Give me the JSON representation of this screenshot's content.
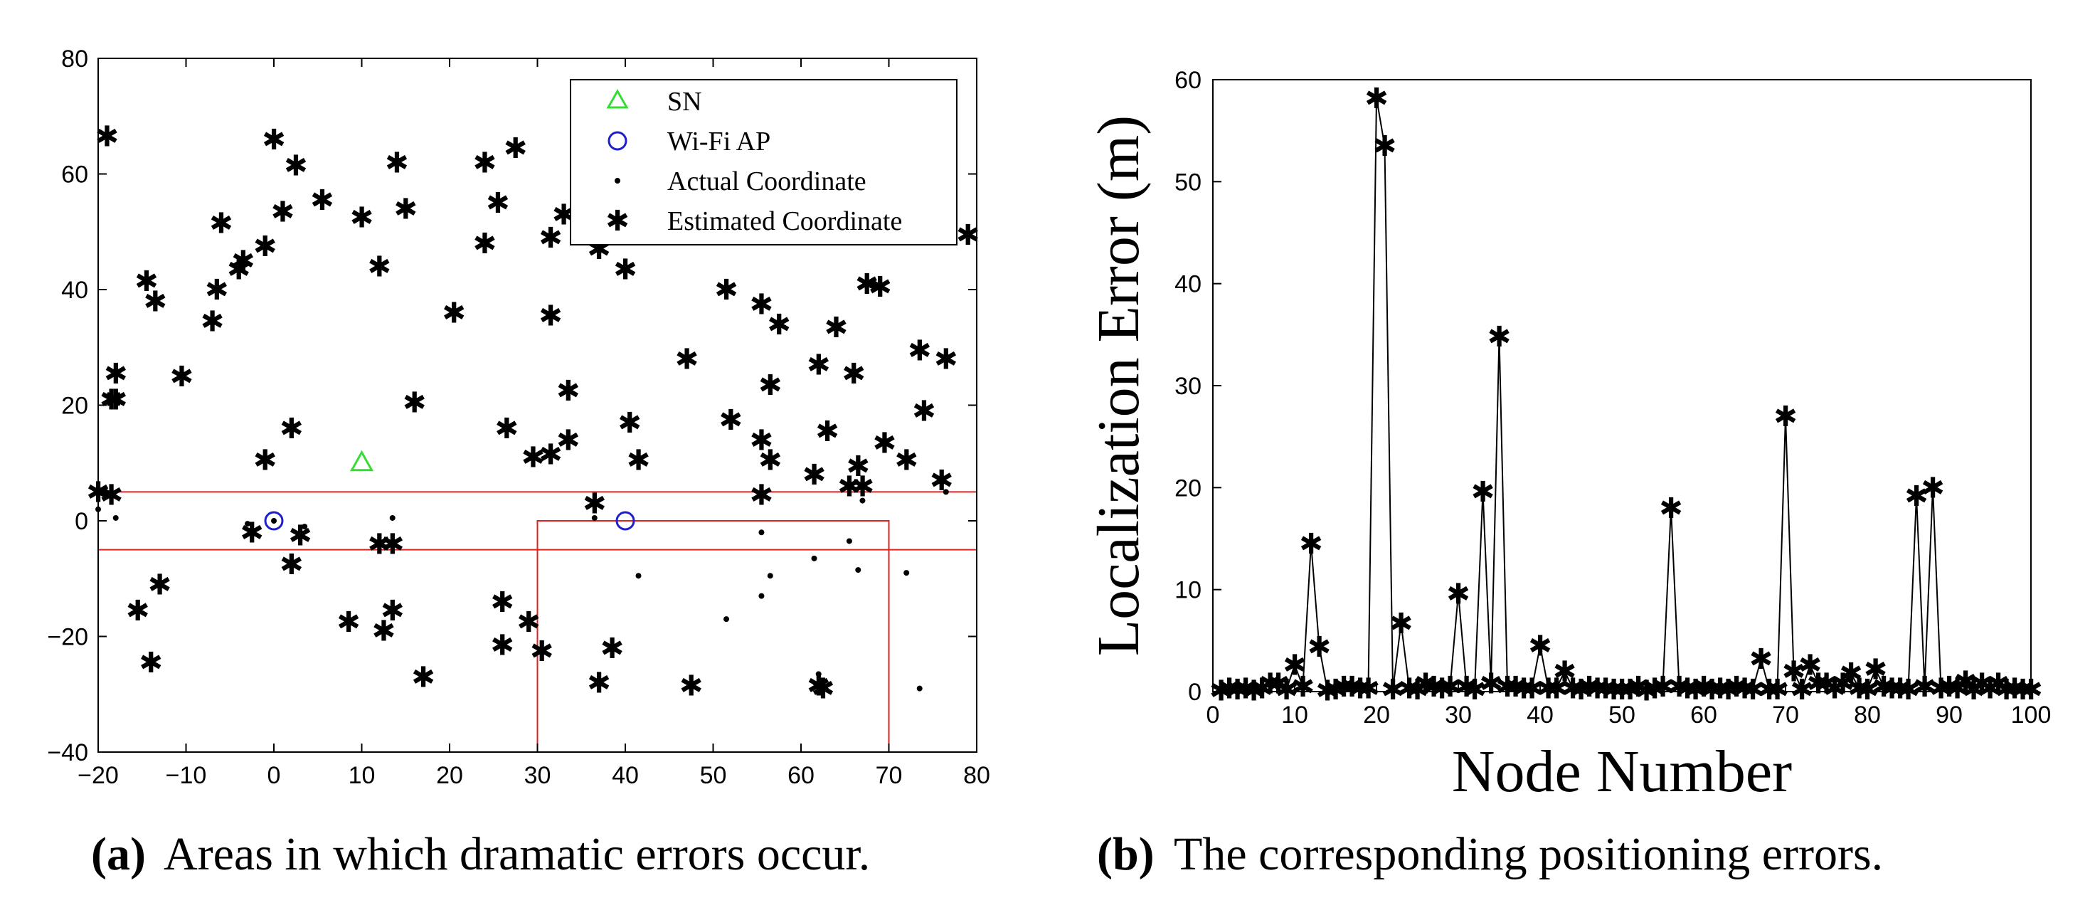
{
  "captions": {
    "a_label": "(a)",
    "a_text": "Areas in which dramatic errors occur.",
    "b_label": "(b)",
    "b_text": "The corresponding positioning errors."
  },
  "chart_data": [
    {
      "type": "scatter",
      "title": "",
      "xlabel": "",
      "ylabel": "",
      "xlim": [
        -20,
        80
      ],
      "ylim": [
        -40,
        80
      ],
      "xticks": [
        -20,
        -10,
        0,
        10,
        20,
        30,
        40,
        50,
        60,
        70,
        80
      ],
      "yticks": [
        -40,
        -20,
        0,
        20,
        40,
        60,
        80
      ],
      "legend_position": "top-right",
      "legend": [
        "SN",
        "Wi-Fi AP",
        "Actual Coordinate",
        "Estimated Coordinate"
      ],
      "colors": {
        "sn": "#33dd33",
        "ap": "#1f1fcc",
        "region": "#dd2222",
        "points": "#000000"
      },
      "sn": [
        [
          10,
          10
        ]
      ],
      "wifi_ap": [
        [
          0,
          0
        ],
        [
          40,
          0
        ]
      ],
      "regions": [
        {
          "x": [
            -20,
            80
          ],
          "y": [
            -5,
            5
          ]
        },
        {
          "x": [
            30,
            70
          ],
          "y": [
            -40,
            0
          ]
        }
      ],
      "actual": [
        [
          -20,
          2
        ],
        [
          -18,
          0.5
        ],
        [
          -3,
          -0.5
        ],
        [
          0,
          0
        ],
        [
          3.5,
          -1
        ],
        [
          12,
          -4
        ],
        [
          13.5,
          0.5
        ],
        [
          36.5,
          0.5
        ],
        [
          41.5,
          -9.5
        ],
        [
          51.5,
          -17
        ],
        [
          55.5,
          -2
        ],
        [
          55.5,
          -13
        ],
        [
          56.5,
          -9.5
        ],
        [
          61.5,
          -6.5
        ],
        [
          62,
          -26.5
        ],
        [
          65.5,
          -3.5
        ],
        [
          66.5,
          -8.5
        ],
        [
          67,
          3.5
        ],
        [
          72,
          -9
        ],
        [
          73.5,
          -29
        ],
        [
          76.5,
          5
        ]
      ],
      "estimated": [
        [
          -19,
          66.5
        ],
        [
          -20,
          5
        ],
        [
          -18.5,
          21
        ],
        [
          -18,
          25.5
        ],
        [
          -18,
          21
        ],
        [
          -18.5,
          4.5
        ],
        [
          -15.5,
          -15.5
        ],
        [
          -14.5,
          41.5
        ],
        [
          -14,
          -24.5
        ],
        [
          -13.5,
          38
        ],
        [
          -13,
          -11
        ],
        [
          -10.5,
          25
        ],
        [
          -7,
          34.5
        ],
        [
          -6.5,
          40
        ],
        [
          -6,
          51.5
        ],
        [
          -4,
          43.5
        ],
        [
          -3.5,
          45
        ],
        [
          -2.5,
          -2
        ],
        [
          -1,
          10.5
        ],
        [
          -1,
          47.5
        ],
        [
          0,
          66
        ],
        [
          1,
          53.5
        ],
        [
          2,
          16
        ],
        [
          2,
          -7.5
        ],
        [
          2.5,
          61.5
        ],
        [
          3,
          -2.5
        ],
        [
          5.5,
          55.5
        ],
        [
          8.5,
          -17.5
        ],
        [
          10,
          52.5
        ],
        [
          12,
          -4
        ],
        [
          12,
          44
        ],
        [
          12.5,
          -19
        ],
        [
          13.5,
          -4
        ],
        [
          13.5,
          -15.5
        ],
        [
          14,
          62
        ],
        [
          15,
          54
        ],
        [
          16,
          20.5
        ],
        [
          17,
          -27
        ],
        [
          20.5,
          36
        ],
        [
          24,
          62
        ],
        [
          24,
          48
        ],
        [
          25.5,
          55
        ],
        [
          26,
          -14
        ],
        [
          26,
          -21.5
        ],
        [
          26.5,
          16
        ],
        [
          27.5,
          64.5
        ],
        [
          29,
          -17.5
        ],
        [
          29.5,
          11
        ],
        [
          30.5,
          -22.5
        ],
        [
          31.5,
          11.5
        ],
        [
          31.5,
          35.5
        ],
        [
          31.5,
          49
        ],
        [
          33,
          53
        ],
        [
          33.5,
          22.5
        ],
        [
          33.5,
          14
        ],
        [
          36.5,
          3
        ],
        [
          37,
          -28
        ],
        [
          37,
          47
        ],
        [
          38.5,
          -22
        ],
        [
          40,
          43.5
        ],
        [
          40.5,
          17
        ],
        [
          41.5,
          10.5
        ],
        [
          47,
          28
        ],
        [
          47.5,
          -28.5
        ],
        [
          51.5,
          40
        ],
        [
          52,
          17.5
        ],
        [
          55.5,
          37.5
        ],
        [
          55.5,
          14
        ],
        [
          55.5,
          4.5
        ],
        [
          56.5,
          23.5
        ],
        [
          56.5,
          10.5
        ],
        [
          57.5,
          34
        ],
        [
          61.5,
          8
        ],
        [
          62,
          27
        ],
        [
          62,
          -28.5
        ],
        [
          62.5,
          -29
        ],
        [
          63,
          15.5
        ],
        [
          64,
          33.5
        ],
        [
          65.5,
          6
        ],
        [
          66,
          25.5
        ],
        [
          66.5,
          9.5
        ],
        [
          67,
          6
        ],
        [
          67.5,
          41
        ],
        [
          69,
          40.5
        ],
        [
          69.5,
          13.5
        ],
        [
          72,
          10.5
        ],
        [
          73.5,
          29.5
        ],
        [
          74,
          19
        ],
        [
          76,
          7
        ],
        [
          76.5,
          28
        ],
        [
          79,
          49.5
        ]
      ]
    },
    {
      "type": "line",
      "title": "",
      "xlabel": "Node Number",
      "ylabel": "Localization Error (m)",
      "xlim": [
        0,
        100
      ],
      "ylim": [
        0,
        60
      ],
      "xticks": [
        0,
        10,
        20,
        30,
        40,
        50,
        60,
        70,
        80,
        90,
        100
      ],
      "yticks": [
        0,
        10,
        20,
        30,
        40,
        50,
        60
      ],
      "marker": "asterisk",
      "x": [
        1,
        2,
        3,
        4,
        5,
        6,
        7,
        8,
        9,
        10,
        11,
        12,
        13,
        14,
        15,
        16,
        17,
        18,
        19,
        20,
        21,
        22,
        23,
        24,
        25,
        26,
        27,
        28,
        29,
        30,
        31,
        32,
        33,
        34,
        35,
        36,
        37,
        38,
        39,
        40,
        41,
        42,
        43,
        44,
        45,
        46,
        47,
        48,
        49,
        50,
        51,
        52,
        53,
        54,
        55,
        56,
        57,
        58,
        59,
        60,
        61,
        62,
        63,
        64,
        65,
        66,
        67,
        68,
        69,
        70,
        71,
        72,
        73,
        74,
        75,
        76,
        77,
        78,
        79,
        80,
        81,
        82,
        83,
        84,
        85,
        86,
        87,
        88,
        89,
        90,
        91,
        92,
        93,
        94,
        95,
        96,
        97,
        98,
        99,
        100
      ],
      "values": [
        0.1,
        0.3,
        0.2,
        0.3,
        0.1,
        0.3,
        0.8,
        0.8,
        0.2,
        2.6,
        0.5,
        14.5,
        4.4,
        0.1,
        0.2,
        0.5,
        0.5,
        0.3,
        0.3,
        58.2,
        53.5,
        0.2,
        6.7,
        0.3,
        0.2,
        0.8,
        0.5,
        0.3,
        0.5,
        9.6,
        0.5,
        0.2,
        19.6,
        0.8,
        34.8,
        0.5,
        0.5,
        0.3,
        0.3,
        4.5,
        0.3,
        0.3,
        2.0,
        0.3,
        0.2,
        0.5,
        0.3,
        0.3,
        0.2,
        0.2,
        0.2,
        0.5,
        0.1,
        0.3,
        0.5,
        18.0,
        0.5,
        0.3,
        0.2,
        0.5,
        0.2,
        0.3,
        0.2,
        0.5,
        0.3,
        0.2,
        3.2,
        0.2,
        0.2,
        27.0,
        2.0,
        0.2,
        2.6,
        0.8,
        0.8,
        0.3,
        0.8,
        1.8,
        0.3,
        0.2,
        2.2,
        0.5,
        0.3,
        0.3,
        0.2,
        19.2,
        0.5,
        20.0,
        0.3,
        0.5,
        0.3,
        1.0,
        0.2,
        0.8,
        0.3,
        0.8,
        0.2,
        0.3,
        0.2,
        0.2
      ]
    }
  ]
}
